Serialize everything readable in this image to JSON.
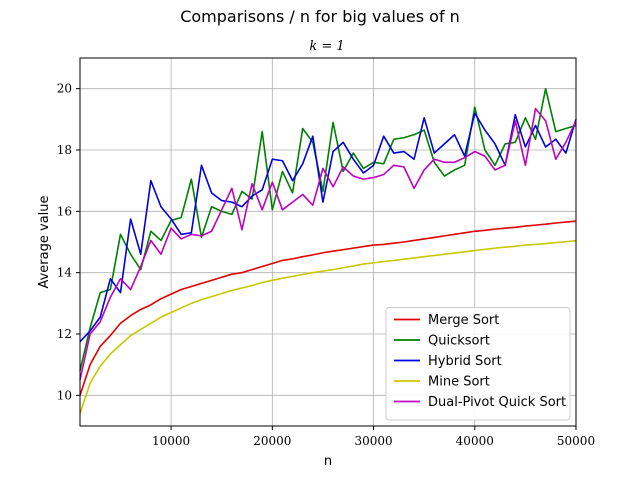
{
  "chart_data": {
    "type": "line",
    "title": "Comparisons / n for big values of n",
    "subtitle": "k = 1",
    "xlabel": "n",
    "ylabel": "Average value",
    "xlim": [
      1000,
      50000
    ],
    "ylim": [
      9,
      21
    ],
    "xticks": [
      10000,
      20000,
      30000,
      40000,
      50000
    ],
    "yticks": [
      10,
      12,
      14,
      16,
      18,
      20
    ],
    "grid": true,
    "legend_position": "bottom-right",
    "x": [
      1000,
      2000,
      3000,
      4000,
      5000,
      6000,
      7000,
      8000,
      9000,
      10000,
      11000,
      12000,
      13000,
      14000,
      15000,
      16000,
      17000,
      18000,
      19000,
      20000,
      21000,
      22000,
      23000,
      24000,
      25000,
      26000,
      27000,
      28000,
      29000,
      30000,
      31000,
      32000,
      33000,
      34000,
      35000,
      36000,
      37000,
      38000,
      39000,
      40000,
      41000,
      42000,
      43000,
      44000,
      45000,
      46000,
      47000,
      48000,
      49000,
      50000
    ],
    "series": [
      {
        "name": "Merge Sort",
        "color": "#e00000",
        "values": [
          10.0,
          11.0,
          11.6,
          11.95,
          12.35,
          12.6,
          12.8,
          12.95,
          13.15,
          13.3,
          13.45,
          13.55,
          13.65,
          13.75,
          13.85,
          13.95,
          14.0,
          14.1,
          14.2,
          14.3,
          14.4,
          14.45,
          14.52,
          14.58,
          14.65,
          14.7,
          14.75,
          14.8,
          14.85,
          14.9,
          14.92,
          14.96,
          15.0,
          15.05,
          15.1,
          15.15,
          15.2,
          15.25,
          15.3,
          15.35,
          15.38,
          15.42,
          15.45,
          15.48,
          15.52,
          15.55,
          15.58,
          15.62,
          15.65,
          15.68
        ]
      },
      {
        "name": "Quicksort",
        "color": "#008000",
        "values": [
          10.8,
          12.2,
          13.35,
          13.45,
          15.25,
          14.6,
          14.1,
          15.35,
          15.05,
          15.7,
          15.8,
          17.05,
          15.15,
          16.15,
          16.0,
          15.9,
          16.65,
          16.4,
          18.6,
          16.05,
          17.3,
          16.6,
          18.7,
          18.25,
          16.65,
          18.9,
          17.3,
          17.9,
          17.4,
          17.6,
          17.55,
          18.35,
          18.4,
          18.5,
          18.65,
          17.6,
          17.15,
          17.35,
          17.5,
          19.4,
          18.0,
          17.5,
          18.2,
          18.25,
          19.05,
          18.35,
          20.0,
          18.6,
          18.7,
          18.8
        ]
      },
      {
        "name": "Hybrid Sort",
        "color": "#0000e0",
        "values": [
          11.75,
          12.1,
          12.55,
          13.8,
          13.35,
          15.75,
          14.6,
          17.0,
          16.15,
          15.75,
          15.25,
          15.3,
          17.5,
          16.6,
          16.35,
          16.3,
          16.15,
          16.5,
          16.7,
          17.7,
          17.65,
          17.0,
          17.55,
          18.45,
          16.3,
          17.95,
          18.25,
          17.7,
          17.25,
          17.5,
          18.45,
          17.9,
          17.95,
          17.7,
          19.05,
          17.9,
          18.2,
          18.5,
          17.8,
          19.2,
          18.65,
          18.2,
          17.5,
          19.15,
          18.1,
          18.8,
          18.1,
          18.35,
          17.9,
          19.0
        ]
      },
      {
        "name": "Mine Sort",
        "color": "#c8c800",
        "values": [
          9.4,
          10.4,
          10.95,
          11.35,
          11.65,
          11.95,
          12.15,
          12.35,
          12.55,
          12.7,
          12.85,
          13.0,
          13.12,
          13.22,
          13.32,
          13.42,
          13.5,
          13.58,
          13.68,
          13.75,
          13.82,
          13.88,
          13.94,
          14.0,
          14.05,
          14.1,
          14.16,
          14.22,
          14.28,
          14.32,
          14.36,
          14.4,
          14.44,
          14.48,
          14.52,
          14.56,
          14.6,
          14.64,
          14.68,
          14.72,
          14.76,
          14.8,
          14.83,
          14.86,
          14.9,
          14.92,
          14.95,
          14.98,
          15.01,
          15.04
        ]
      },
      {
        "name": "Dual-Pivot Quick Sort",
        "color": "#c000c0",
        "values": [
          10.5,
          12.0,
          12.4,
          13.2,
          13.8,
          13.45,
          14.2,
          15.05,
          14.6,
          15.45,
          15.1,
          15.25,
          15.2,
          15.35,
          16.05,
          16.75,
          15.4,
          16.9,
          16.05,
          16.95,
          16.05,
          16.3,
          16.55,
          16.2,
          17.4,
          16.8,
          17.45,
          17.15,
          17.05,
          17.1,
          17.2,
          17.5,
          17.45,
          16.75,
          17.35,
          17.7,
          17.6,
          17.6,
          17.75,
          17.95,
          17.8,
          17.35,
          17.5,
          18.95,
          17.5,
          19.35,
          18.95,
          17.7,
          18.25,
          18.95
        ]
      }
    ]
  }
}
